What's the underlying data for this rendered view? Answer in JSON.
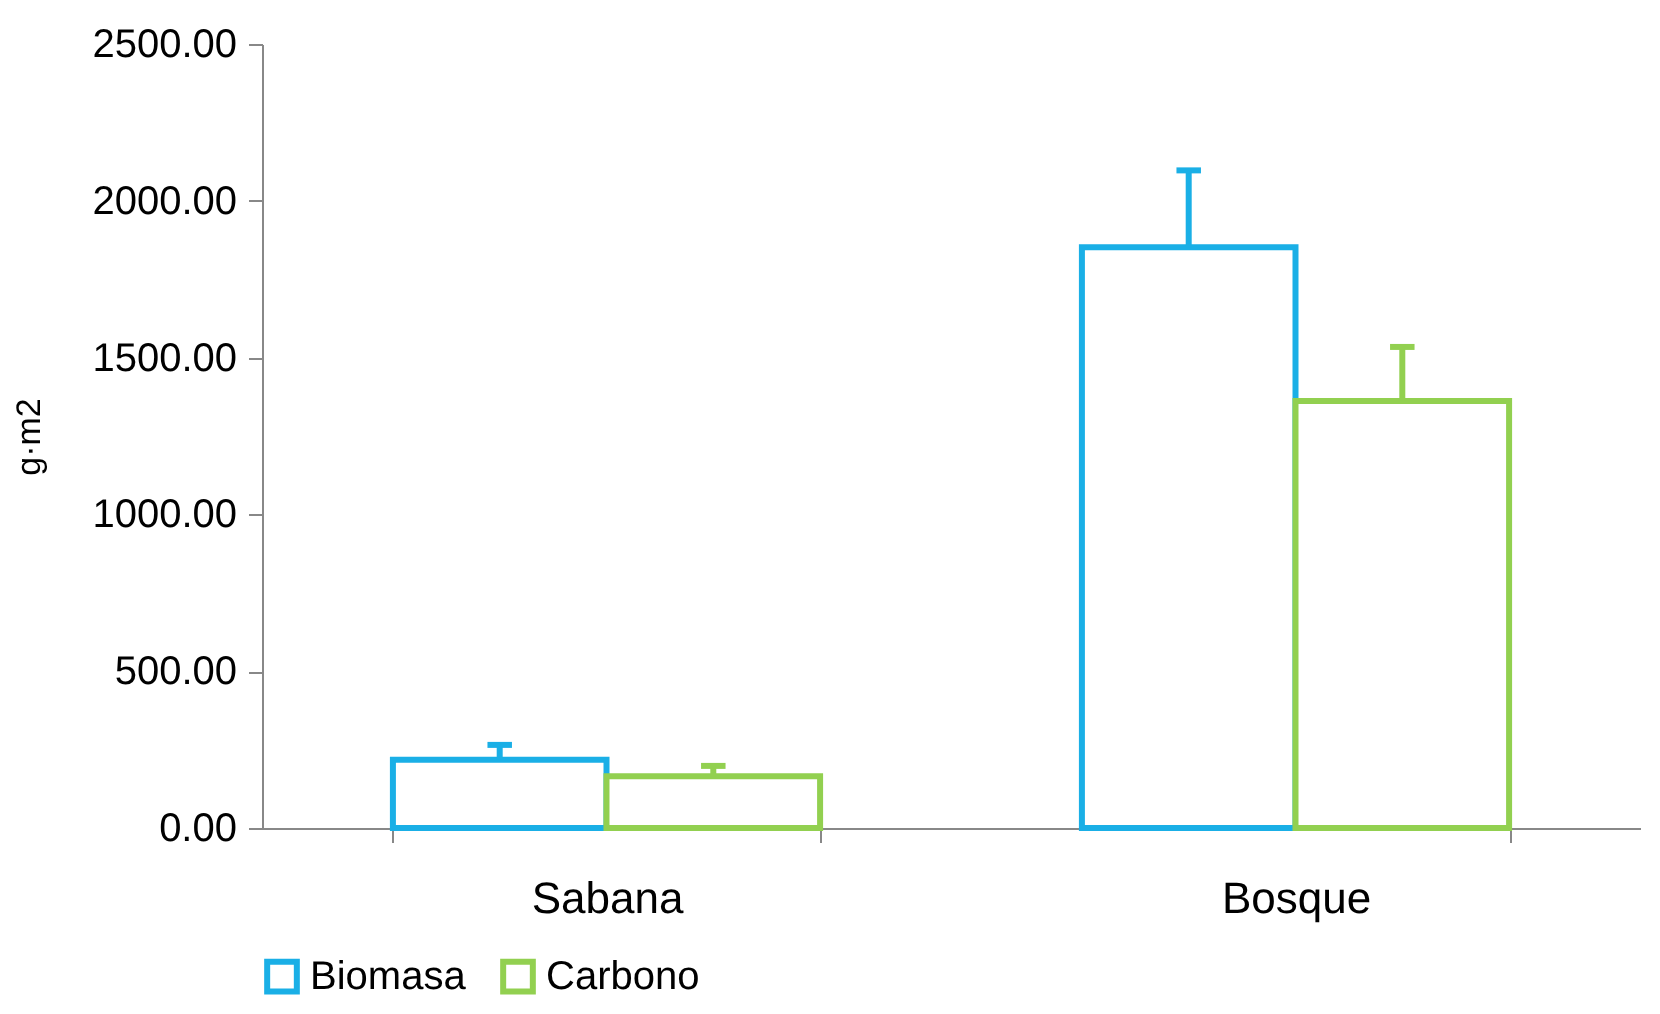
{
  "chart_data": {
    "type": "bar",
    "ylabel": "g·m2",
    "categories": [
      "Sabana",
      "Bosque"
    ],
    "series": [
      {
        "name": "Biomasa",
        "color": "#1aafe6",
        "values": [
          218,
          1852
        ],
        "errors": [
          [
            218,
            265
          ],
          [
            1852,
            2097
          ]
        ]
      },
      {
        "name": "Carbono",
        "color": "#92d050",
        "values": [
          165,
          1362
        ],
        "errors": [
          [
            165,
            198
          ],
          [
            1362,
            1534
          ]
        ]
      }
    ],
    "ylim": [
      0,
      2500
    ],
    "yticks": [
      {
        "value": 0,
        "label": "0.00"
      },
      {
        "value": 500,
        "label": "500.00"
      },
      {
        "value": 1000,
        "label": "1000.00"
      },
      {
        "value": 1500,
        "label": "1500.00"
      },
      {
        "value": 2000,
        "label": "2000.00"
      },
      {
        "value": 2500,
        "label": "2500.00"
      }
    ],
    "grid": false,
    "legend": "bottom"
  }
}
